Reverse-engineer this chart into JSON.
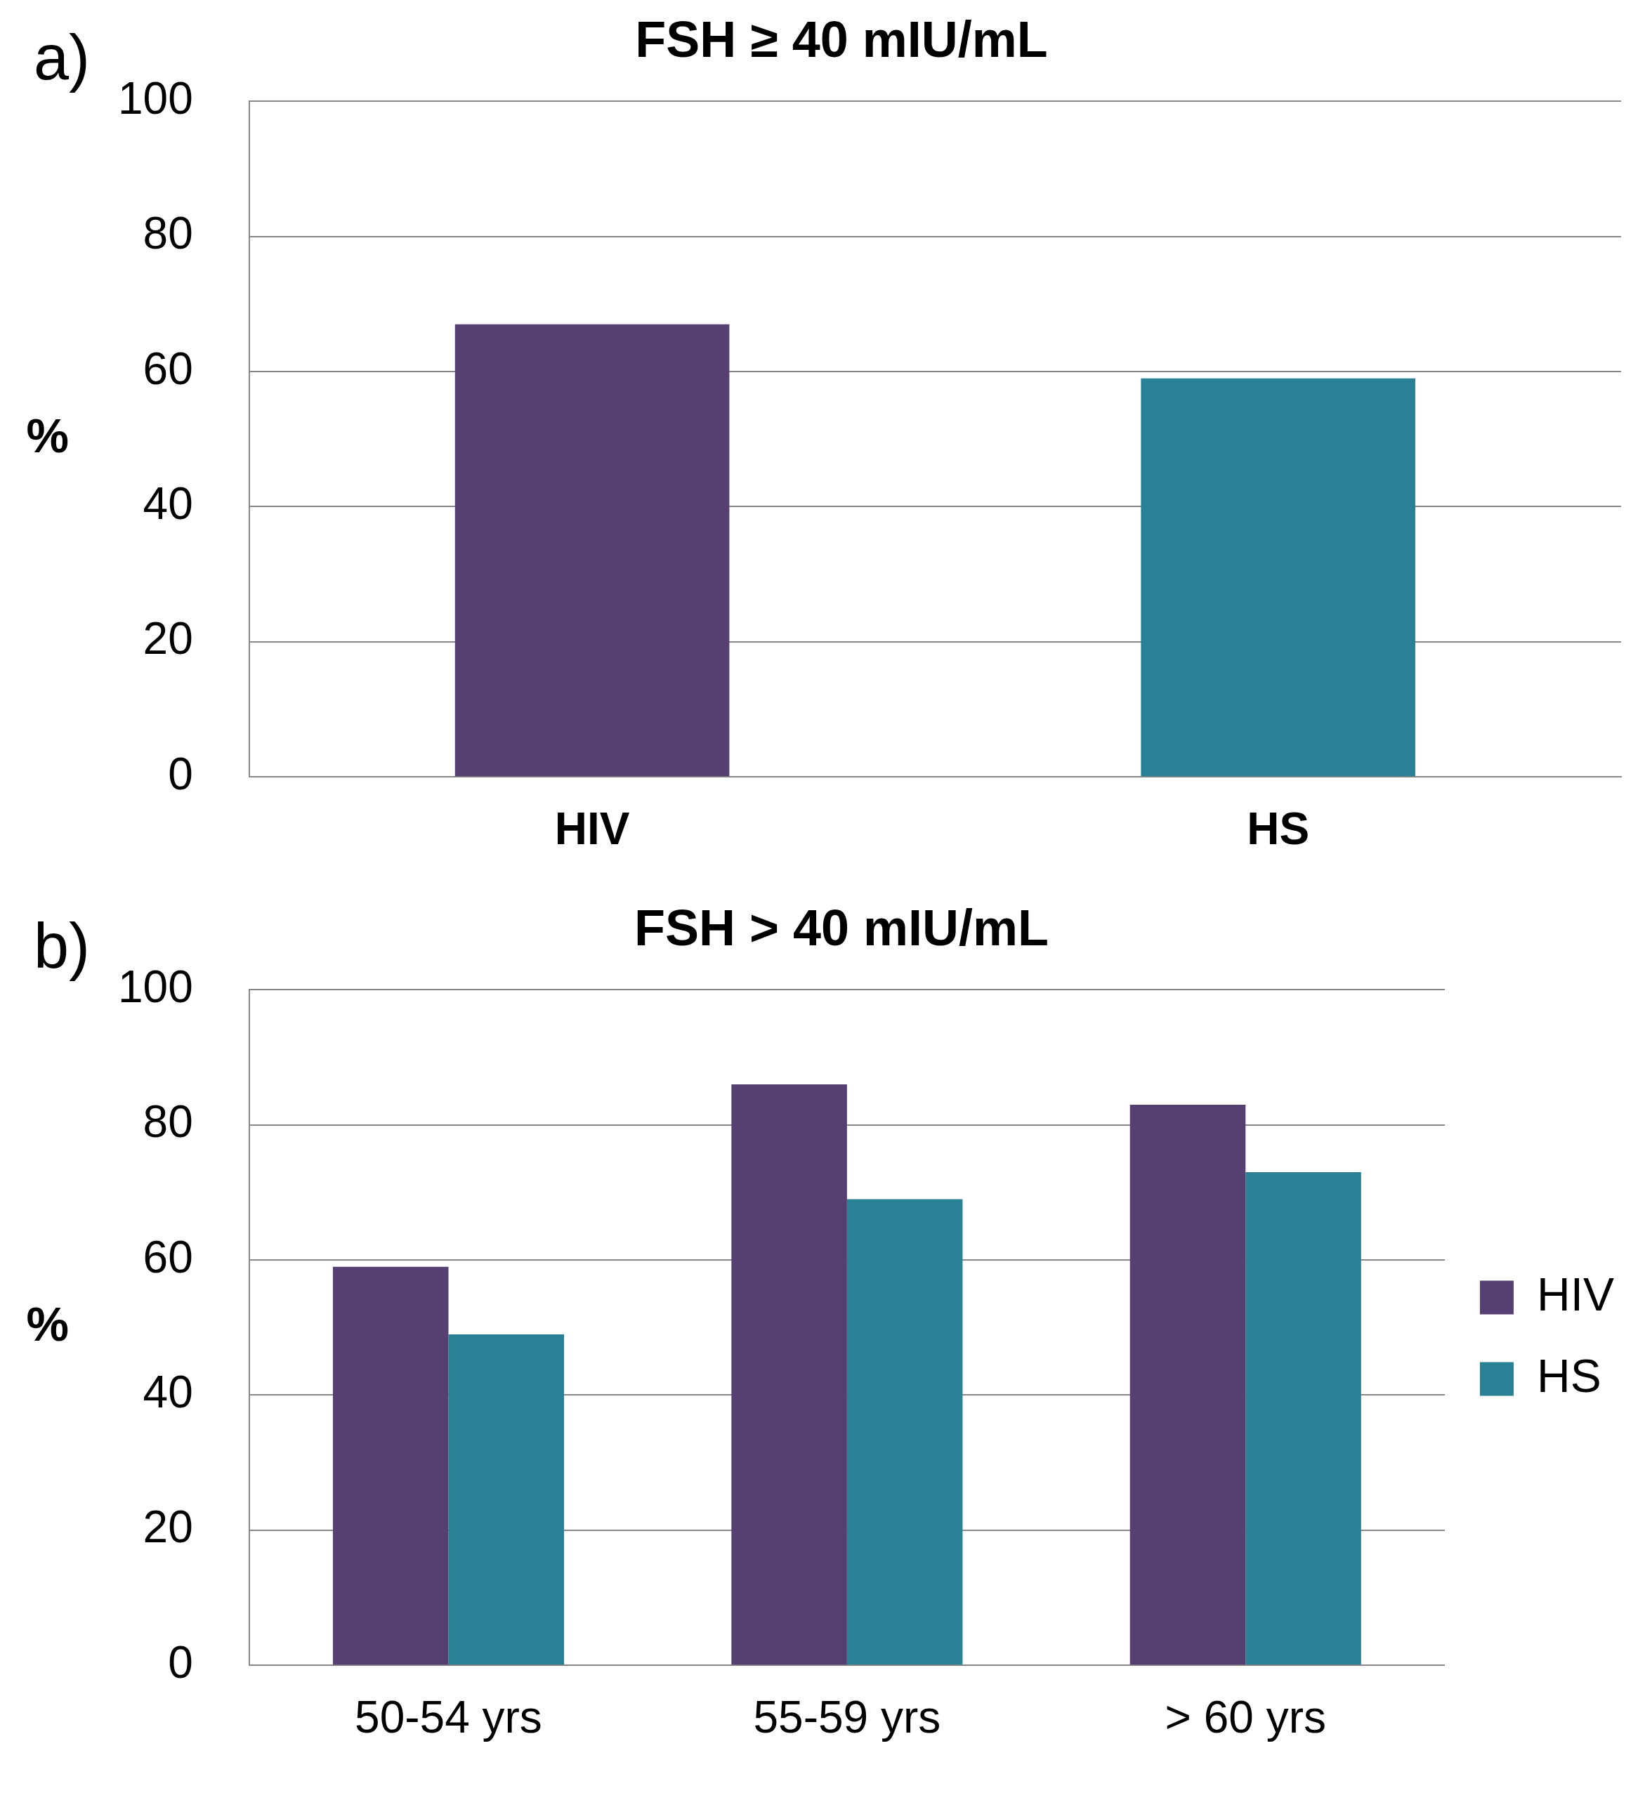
{
  "chart_data": [
    {
      "type": "bar",
      "title": "FSH ≥ 40 mIU/mL",
      "ylabel": "%",
      "annotations": [
        "a)"
      ],
      "categories": [
        "HIV",
        "HS"
      ],
      "values": [
        67,
        59
      ],
      "colors": [
        "#563f73",
        "#2a8095"
      ],
      "ylim": [
        0,
        100
      ],
      "yticks": [
        0,
        20,
        40,
        60,
        80,
        100
      ],
      "grid": "y",
      "legend": false
    },
    {
      "type": "bar",
      "title": "FSH > 40 mIU/mL",
      "ylabel": "%",
      "annotations": [
        "b)"
      ],
      "categories": [
        "50-54 yrs",
        "55-59 yrs",
        "> 60 yrs"
      ],
      "series": [
        {
          "name": "HIV",
          "color": "#563f73",
          "values": [
            59,
            86,
            83
          ]
        },
        {
          "name": "HS",
          "color": "#2a8095",
          "values": [
            49,
            69,
            73
          ]
        }
      ],
      "ylim": [
        0,
        100
      ],
      "yticks": [
        0,
        20,
        40,
        60,
        80,
        100
      ],
      "grid": "y",
      "legend": "right"
    }
  ]
}
